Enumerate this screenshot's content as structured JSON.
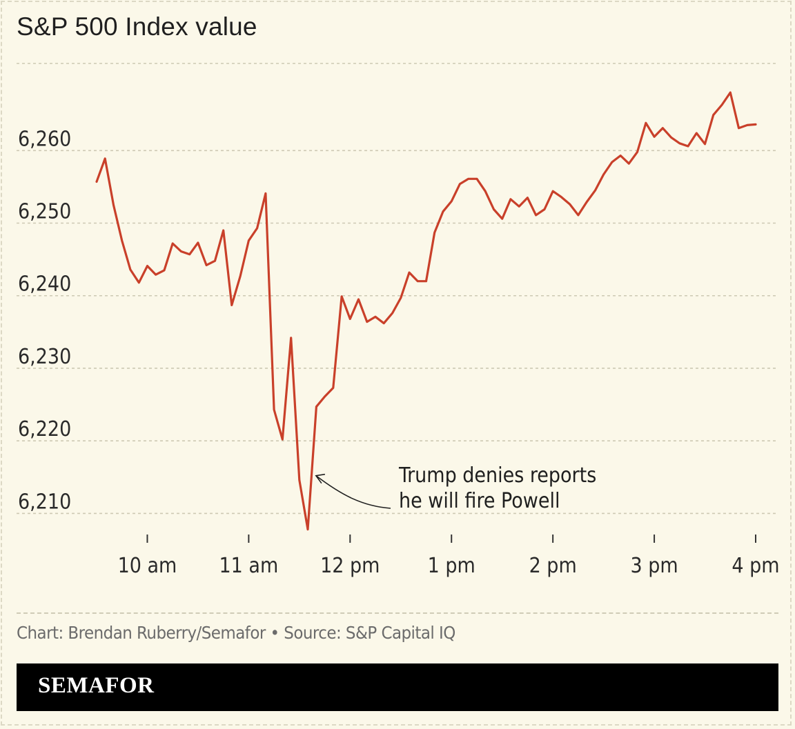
{
  "chart_data": {
    "type": "line",
    "title": "S&P 500 Index value",
    "xlabel": "",
    "ylabel": "",
    "x_tick_labels": [
      "10 am",
      "11 am",
      "12 pm",
      "1 pm",
      "2 pm",
      "3 pm",
      "4 pm"
    ],
    "y_tick_labels": [
      "6,210",
      "6,220",
      "6,230",
      "6,240",
      "6,250",
      "6,260"
    ],
    "y_ticks": [
      6210,
      6220,
      6230,
      6240,
      6250,
      6260
    ],
    "x_ticks_hours": [
      10,
      11,
      12,
      13,
      14,
      15,
      16
    ],
    "xlim_hours": [
      9.5,
      16
    ],
    "ylim": [
      6207,
      6272
    ],
    "grid": "horizontal dashed",
    "line_color": "#c9402a",
    "background_color": "#fbf8e9",
    "series": [
      {
        "x_hours": [
          9.5,
          9.583,
          9.667,
          9.75,
          9.833,
          9.917,
          10.0,
          10.083,
          10.167,
          10.25,
          10.333,
          10.417,
          10.5,
          10.583,
          10.667,
          10.75,
          10.833,
          10.917,
          11.0,
          11.083,
          11.167,
          11.25,
          11.333,
          11.417,
          11.5,
          11.583,
          11.667,
          11.75,
          11.833,
          11.917,
          12.0,
          12.083,
          12.167,
          12.25,
          12.333,
          12.417,
          12.5,
          12.583,
          12.667,
          12.75,
          12.833,
          12.917,
          13.0,
          13.083,
          13.167,
          13.25,
          13.333,
          13.417,
          13.5,
          13.583,
          13.667,
          13.75,
          13.833,
          13.917,
          14.0,
          14.083,
          14.167,
          14.25,
          14.333,
          14.417,
          14.5,
          14.583,
          14.667,
          14.75,
          14.833,
          14.917,
          15.0,
          15.083,
          15.167,
          15.25,
          15.333,
          15.417,
          15.5,
          15.583,
          15.667,
          15.75,
          15.833,
          15.917,
          16.0
        ],
        "values": [
          6255.7,
          6258.9,
          6252.5,
          6247.6,
          6243.6,
          6241.8,
          6244.1,
          6242.9,
          6243.5,
          6247.2,
          6246.1,
          6245.7,
          6247.3,
          6244.2,
          6244.8,
          6249.0,
          6238.7,
          6242.7,
          6247.6,
          6249.3,
          6254.1,
          6224.3,
          6220.2,
          6234.2,
          6214.6,
          6207.8,
          6224.7,
          6226.1,
          6227.3,
          6239.9,
          6236.8,
          6239.5,
          6236.4,
          6237.1,
          6236.2,
          6237.6,
          6239.7,
          6243.2,
          6242.0,
          6242.0,
          6248.7,
          6251.6,
          6253.0,
          6255.4,
          6256.1,
          6256.1,
          6254.4,
          6251.9,
          6250.6,
          6253.3,
          6252.3,
          6253.5,
          6251.1,
          6251.9,
          6254.4,
          6253.6,
          6252.6,
          6251.1,
          6252.9,
          6254.5,
          6256.7,
          6258.4,
          6259.3,
          6258.2,
          6259.8,
          6263.8,
          6261.9,
          6263.1,
          6261.8,
          6261.0,
          6260.6,
          6262.4,
          6260.9,
          6264.9,
          6266.3,
          6268.0,
          6263.1,
          6263.5,
          6263.6
        ]
      }
    ],
    "annotations": [
      {
        "lines": [
          "Trump denies reports",
          "he will fire Powell"
        ],
        "points_to_hour": 11.65,
        "points_to_value": 6215.3
      }
    ]
  },
  "credit": "Chart: Brendan Ruberry/Semafor • Source: S&P Capital IQ",
  "brand": "SEMAFOR"
}
